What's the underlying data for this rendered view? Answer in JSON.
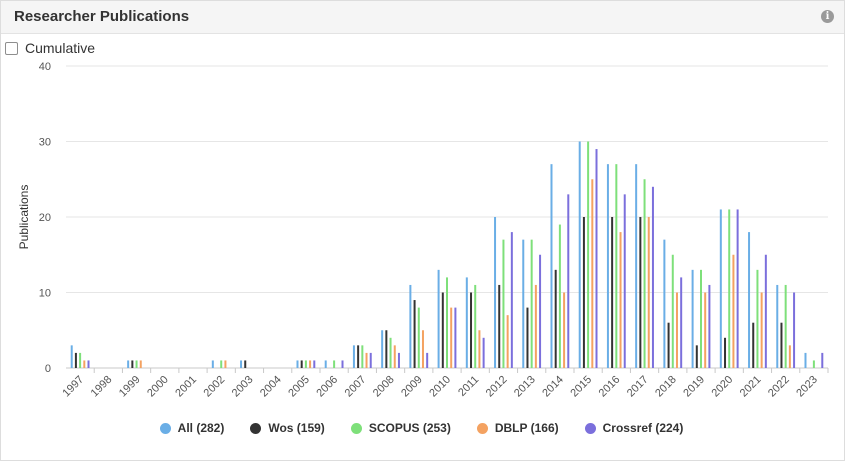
{
  "header": {
    "title": "Researcher Publications",
    "info_icon": "info-icon"
  },
  "controls": {
    "cumulative_label": "Cumulative",
    "cumulative_checked": false
  },
  "chart_data": {
    "type": "bar",
    "ylabel": "Publications",
    "ylim": [
      0,
      40
    ],
    "yticks": [
      0,
      10,
      20,
      30,
      40
    ],
    "grid": true,
    "legend_position": "bottom",
    "categories": [
      "1997",
      "1998",
      "1999",
      "2000",
      "2001",
      "2002",
      "2003",
      "2004",
      "2005",
      "2006",
      "2007",
      "2008",
      "2009",
      "2010",
      "2011",
      "2012",
      "2013",
      "2014",
      "2015",
      "2016",
      "2017",
      "2018",
      "2019",
      "2020",
      "2021",
      "2022",
      "2023"
    ],
    "series": [
      {
        "name": "All",
        "legend": "All (282)",
        "color": "#6aaee6",
        "values": [
          3,
          0,
          1,
          0,
          0,
          1,
          1,
          0,
          1,
          1,
          3,
          5,
          11,
          13,
          12,
          20,
          17,
          27,
          30,
          27,
          27,
          17,
          13,
          21,
          18,
          11,
          2
        ]
      },
      {
        "name": "Wos",
        "legend": "Wos (159)",
        "color": "#333333",
        "values": [
          2,
          0,
          1,
          0,
          0,
          0,
          1,
          0,
          1,
          0,
          3,
          5,
          9,
          10,
          10,
          11,
          8,
          13,
          20,
          20,
          20,
          6,
          3,
          4,
          6,
          6,
          0
        ]
      },
      {
        "name": "SCOPUS",
        "legend": "SCOPUS (253)",
        "color": "#7ee07a",
        "values": [
          2,
          0,
          1,
          0,
          0,
          1,
          0,
          0,
          1,
          1,
          3,
          4,
          8,
          12,
          11,
          17,
          17,
          19,
          30,
          27,
          25,
          15,
          13,
          21,
          13,
          11,
          1
        ]
      },
      {
        "name": "DBLP",
        "legend": "DBLP (166)",
        "color": "#f4a261",
        "values": [
          1,
          0,
          1,
          0,
          0,
          1,
          0,
          0,
          1,
          0,
          2,
          3,
          5,
          8,
          5,
          7,
          11,
          10,
          25,
          18,
          20,
          10,
          10,
          15,
          10,
          3,
          0
        ]
      },
      {
        "name": "Crossref",
        "legend": "Crossref (224)",
        "color": "#7b6fdc",
        "values": [
          1,
          0,
          0,
          0,
          0,
          0,
          0,
          0,
          1,
          1,
          2,
          2,
          2,
          8,
          4,
          18,
          15,
          23,
          29,
          23,
          24,
          12,
          11,
          21,
          15,
          10,
          2
        ]
      }
    ]
  }
}
